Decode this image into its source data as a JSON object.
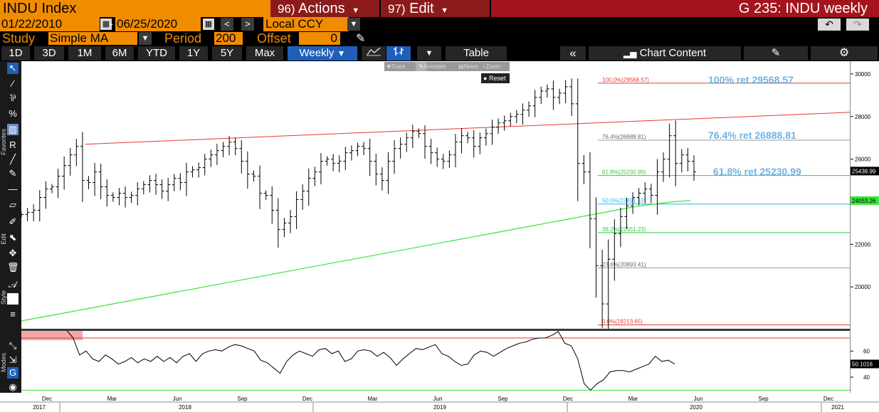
{
  "header": {
    "ticker": "INDU Index",
    "actions_num": "96)",
    "actions_label": "Actions",
    "edit_num": "97)",
    "edit_label": "Edit",
    "title": "G 235: INDU weekly"
  },
  "range": {
    "start_date": "01/22/2010",
    "separator": "-",
    "end_date": "06/25/2020",
    "currency": "Local CCY"
  },
  "study": {
    "label": "Study",
    "value": "Simple MA",
    "period_label": "Period",
    "period_value": "200",
    "offset_label": "Offset",
    "offset_value": "0"
  },
  "periods": [
    "1D",
    "3D",
    "1M",
    "6M",
    "YTD",
    "1Y",
    "5Y",
    "Max"
  ],
  "toolbar": {
    "weekly": "Weekly",
    "table": "Table",
    "chart_content": "Chart Content"
  },
  "mini_toolbar": {
    "track": "Track",
    "annotate": "Annotate",
    "news": "News",
    "zoom": "Zoom",
    "reset": "Reset"
  },
  "side_labels": {
    "favorites": "Favorites",
    "edit": "Edit",
    "style": "Style",
    "modes": "Modes"
  },
  "annotations": {
    "ret100": "100% ret 29568.57",
    "ret764": "76.4% ret 26888.81",
    "ret618": "61.8% ret 25230.99"
  },
  "fib_levels": [
    {
      "label": "100.0%(29568.57)",
      "value": 29568.57,
      "color": "#e53935"
    },
    {
      "label": "76.4%(26888.81)",
      "value": 26888.81,
      "color": "#999999"
    },
    {
      "label": "61.8%(25230.99)",
      "value": 25230.99,
      "color": "#2ecc40"
    },
    {
      "label": "50.0%(23891.10)",
      "value": 23891.1,
      "color": "#29b6f6"
    },
    {
      "label": "38.2%(22551.23)",
      "value": 22551.23,
      "color": "#2ecc40"
    },
    {
      "label": "23.6%(20893.41)",
      "value": 20893.41,
      "color": "#999999"
    },
    {
      "label": "0.0%(18213.65)",
      "value": 18213.65,
      "color": "#e53935"
    }
  ],
  "price_badges": {
    "last": "25438.99",
    "ma": "24053.26",
    "osc": "50.1016"
  },
  "colors": {
    "bloomberg_orange": "#f08c00",
    "title_red": "#a3141c",
    "menu_red": "#8b1a1a",
    "active_blue": "#1f5fb8",
    "annotation_blue": "#6fb4e6",
    "ma_green": "#39e639",
    "trend_red": "#e53935"
  },
  "chart_data": {
    "type": "bar",
    "ylim": [
      18000,
      30600
    ],
    "y_ticks": [
      20000,
      22000,
      24000,
      26000,
      28000,
      30000
    ],
    "osc_ylim": [
      28,
      76
    ],
    "osc_ticks": [
      40,
      60
    ],
    "osc_upper": 70,
    "osc_lower": 30,
    "month_ticks": [
      "Dec",
      "Mar",
      "Jun",
      "Sep",
      "Dec",
      "Mar",
      "Jun",
      "Sep",
      "Dec",
      "Mar",
      "Jun",
      "Sep",
      "Dec"
    ],
    "year_labels": [
      "2017",
      "2018",
      "2019",
      "2020",
      "2021"
    ],
    "price_series": {
      "name": "INDU weekly",
      "values": [
        23400,
        23500,
        23600,
        24200,
        24600,
        24700,
        25200,
        25700,
        26200,
        26600,
        25000,
        24900,
        25400,
        24700,
        24300,
        24200,
        24400,
        24200,
        24300,
        24600,
        24800,
        25000,
        24800,
        24500,
        24800,
        25100,
        24900,
        25400,
        25500,
        25600,
        26000,
        26200,
        26400,
        26600,
        26800,
        26500,
        25900,
        25300,
        25200,
        24400,
        24300,
        23600,
        22700,
        23000,
        23300,
        24100,
        24500,
        25100,
        25400,
        25900,
        26000,
        25800,
        25900,
        26300,
        26400,
        26600,
        26500,
        25900,
        25300,
        25000,
        25900,
        26500,
        26700,
        27000,
        27300,
        27200,
        26600,
        26300,
        26000,
        25900,
        26200,
        26800,
        27100,
        27000,
        26600,
        27000,
        27200,
        27500,
        27700,
        27800,
        28000,
        28100,
        28300,
        28500,
        28900,
        29200,
        29300,
        28900,
        29100,
        29400,
        28600,
        25800,
        25400,
        23200,
        21000,
        19200,
        21300,
        22500,
        23300,
        23800,
        24200,
        24400,
        24600,
        24300,
        25400,
        26000,
        27100,
        25800,
        26200,
        25900,
        25400
      ],
      "ma200": [
        18400,
        18550,
        18700,
        18850,
        19000,
        19150,
        19300,
        19450,
        19600,
        19750,
        19900,
        20050,
        20200,
        20350,
        20500,
        20650,
        20800,
        20950,
        21100,
        21250,
        21400,
        21550,
        21700,
        21850,
        22000,
        22150,
        22300,
        22450,
        22600,
        22750,
        22900,
        23050,
        23200,
        23350,
        23500,
        23650,
        23800,
        23900,
        24000,
        24053
      ]
    },
    "osc_series": {
      "values": [
        77,
        77,
        77,
        78,
        76,
        77,
        79,
        80,
        70,
        57,
        60,
        54,
        52,
        57,
        54,
        50,
        52,
        55,
        51,
        54,
        52,
        56,
        52,
        55,
        51,
        56,
        58,
        52,
        58,
        60,
        61,
        60,
        63,
        65,
        64,
        62,
        60,
        53,
        51,
        47,
        43,
        52,
        57,
        60,
        58,
        56,
        61,
        62,
        58,
        60,
        52,
        54,
        60,
        61,
        60,
        56,
        59,
        55,
        49,
        54,
        58,
        62,
        61,
        63,
        65,
        58,
        56,
        52,
        49,
        50,
        57,
        60,
        59,
        56,
        59,
        62,
        64,
        66,
        67,
        69,
        70,
        70,
        72,
        75,
        66,
        64,
        54,
        35,
        30,
        35,
        38,
        44,
        45,
        45,
        44,
        46,
        48,
        50,
        56,
        52,
        53,
        50
      ]
    },
    "trend_line": {
      "start": [
        0.077,
        26700
      ],
      "end": [
        1.0,
        28200
      ]
    }
  }
}
